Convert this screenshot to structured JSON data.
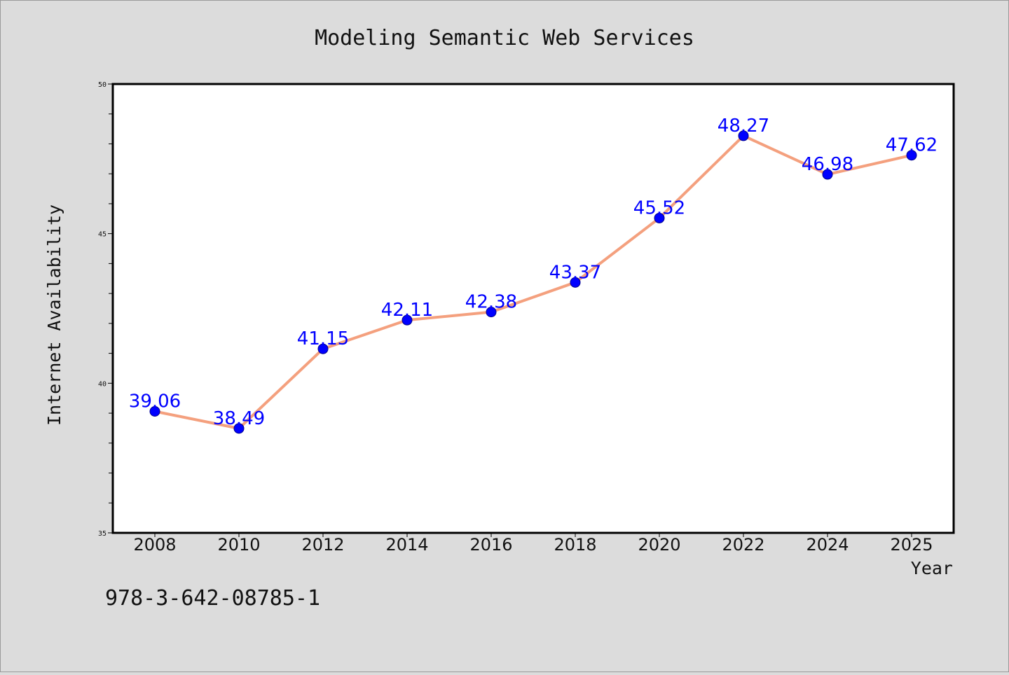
{
  "colors": {
    "line": "#f4a07e",
    "marker": "#0000ff",
    "marker_edge": "#00008b",
    "data_label": "#0000ff",
    "plot_background": "#ffffff",
    "figure_background": "#dcdcdc"
  },
  "footer_note": "978-3-642-08785-1",
  "chart_data": {
    "type": "line",
    "title": "Modeling Semantic Web Services",
    "xlabel": "Year",
    "ylabel": "Internet Availability",
    "x": [
      2008,
      2010,
      2012,
      2014,
      2016,
      2018,
      2020,
      2022,
      2024,
      2025
    ],
    "x_tick_labels": [
      "2008",
      "2010",
      "2012",
      "2014",
      "2016",
      "2018",
      "2020",
      "2022",
      "2024",
      "2025"
    ],
    "series": [
      {
        "values": [
          39.06,
          38.49,
          41.15,
          42.11,
          42.38,
          43.37,
          45.52,
          48.27,
          46.98,
          47.62
        ],
        "labels": [
          "39.06",
          "38.49",
          "41.15",
          "42.11",
          "42.38",
          "43.37",
          "45.52",
          "48.27",
          "46.98",
          "47.62"
        ]
      }
    ],
    "ylim": [
      35,
      50
    ],
    "y_tick_labels": [
      "35",
      "40",
      "45",
      "50"
    ],
    "y_minor_step": 1,
    "grid": false,
    "legend": "none"
  }
}
